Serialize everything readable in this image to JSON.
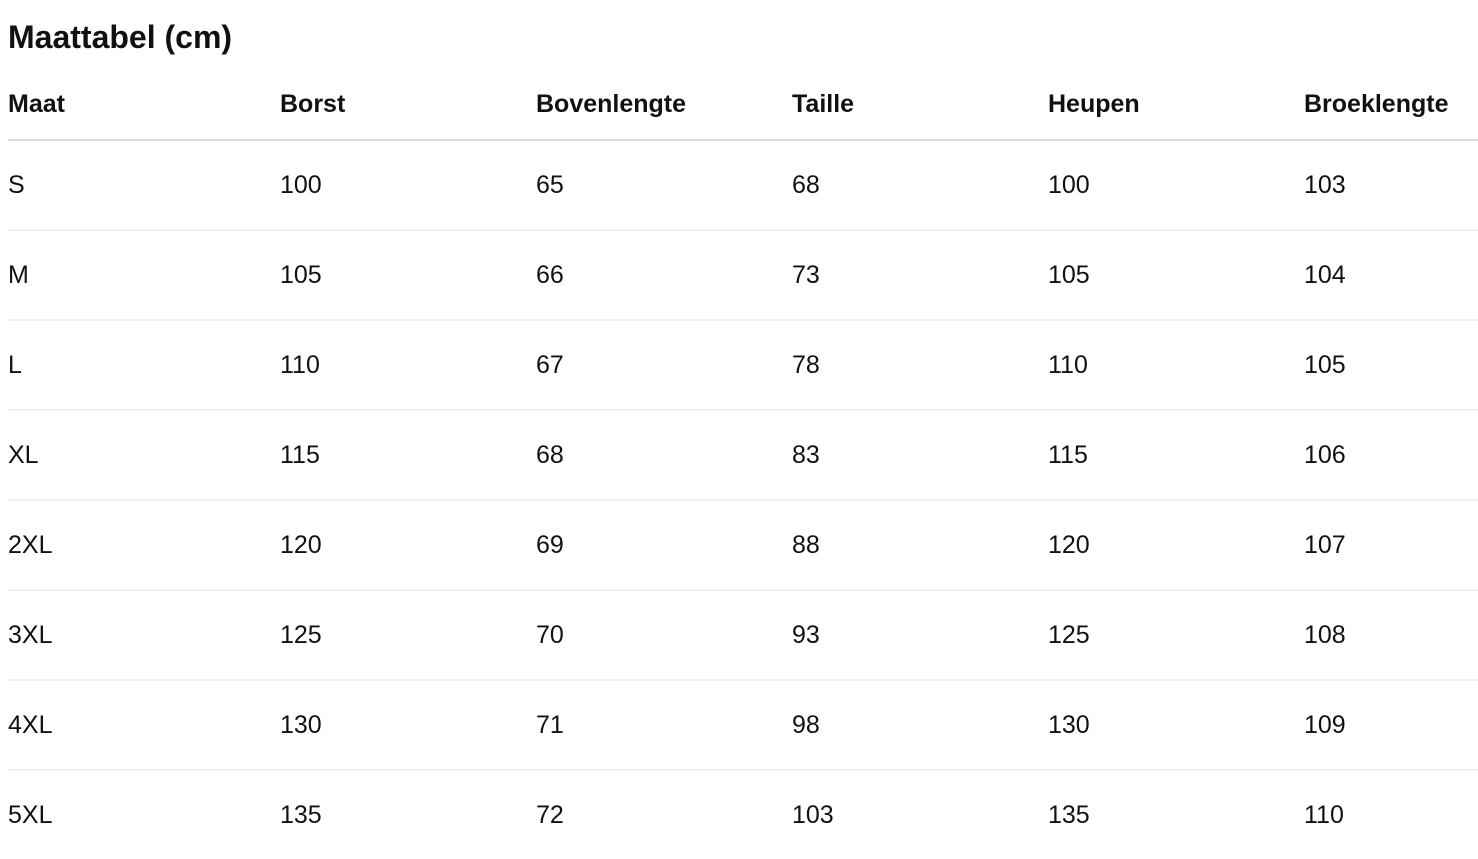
{
  "title": "Maattabel (cm)",
  "table": {
    "headers": [
      "Maat",
      "Borst",
      "Bovenlengte",
      "Taille",
      "Heupen",
      "Broeklengte"
    ],
    "rows": [
      [
        "S",
        "100",
        "65",
        "68",
        "100",
        "103"
      ],
      [
        "M",
        "105",
        "66",
        "73",
        "105",
        "104"
      ],
      [
        "L",
        "110",
        "67",
        "78",
        "110",
        "105"
      ],
      [
        "XL",
        "115",
        "68",
        "83",
        "115",
        "106"
      ],
      [
        "2XL",
        "120",
        "69",
        "88",
        "120",
        "107"
      ],
      [
        "3XL",
        "125",
        "70",
        "93",
        "125",
        "108"
      ],
      [
        "4XL",
        "130",
        "71",
        "98",
        "130",
        "109"
      ],
      [
        "5XL",
        "135",
        "72",
        "103",
        "135",
        "110"
      ]
    ]
  }
}
